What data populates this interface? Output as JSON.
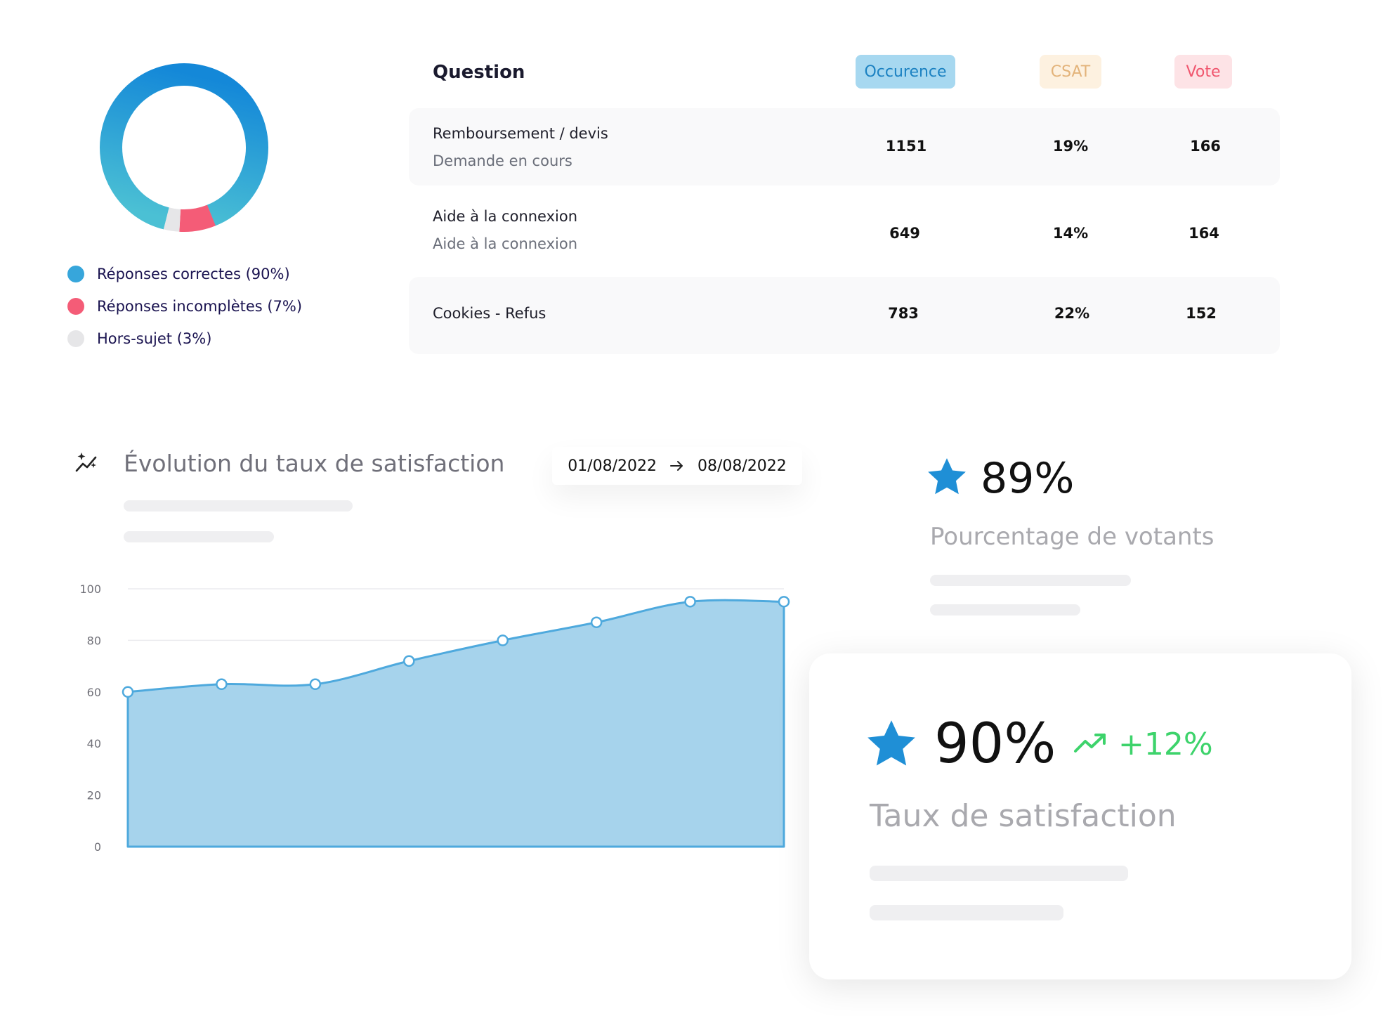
{
  "donut": {
    "legend": [
      {
        "label": "Réponses correctes (90%)",
        "color": "#1f9bd8"
      },
      {
        "label": "Réponses incomplètes (7%)",
        "color": "#f45c77"
      },
      {
        "label": "Hors-sujet (3%)",
        "color": "#e6e6e8"
      }
    ]
  },
  "table": {
    "headers": {
      "question": "Question",
      "occurence": "Occurence",
      "csat": "CSAT",
      "vote": "Vote"
    },
    "rows": [
      {
        "title": "Remboursement / devis",
        "subtitle": "Demande en cours",
        "occurence": "1151",
        "csat": "19%",
        "vote": "166"
      },
      {
        "title": "Aide à la connexion",
        "subtitle": "Aide à la connexion",
        "occurence": "649",
        "csat": "14%",
        "vote": "164"
      },
      {
        "title": "Cookies - Refus",
        "subtitle": "",
        "occurence": "783",
        "csat": "22%",
        "vote": "152"
      }
    ]
  },
  "evolution": {
    "title": "Évolution du taux de satisfaction",
    "date_from": "01/08/2022",
    "date_to": "08/08/2022"
  },
  "chart_data": [
    {
      "type": "pie",
      "categories": [
        "Réponses correctes",
        "Réponses incomplètes",
        "Hors-sujet"
      ],
      "values": [
        90,
        7,
        3
      ],
      "colors": [
        "#1f9bd8",
        "#f45c77",
        "#e6e6e8"
      ]
    },
    {
      "type": "area",
      "x": [
        1,
        2,
        3,
        4,
        5,
        6,
        7,
        8
      ],
      "values": [
        60,
        63,
        63,
        72,
        80,
        87,
        95,
        95
      ],
      "yticks": [
        "0",
        "20",
        "40",
        "60",
        "80",
        "100"
      ],
      "ylim": [
        0,
        100
      ],
      "grid": true,
      "fill_color": "#a6d3ec",
      "line_color": "#4ea9dd"
    }
  ],
  "stats": {
    "votants_value": "89%",
    "votants_label": "Pourcentage de votants",
    "satisfaction_value": "90%",
    "satisfaction_trend": "+12%",
    "satisfaction_label": "Taux de satisfaction"
  },
  "icons": [
    "sparkle-chart-icon",
    "arrow-right-icon",
    "star-icon",
    "trend-up-icon"
  ]
}
